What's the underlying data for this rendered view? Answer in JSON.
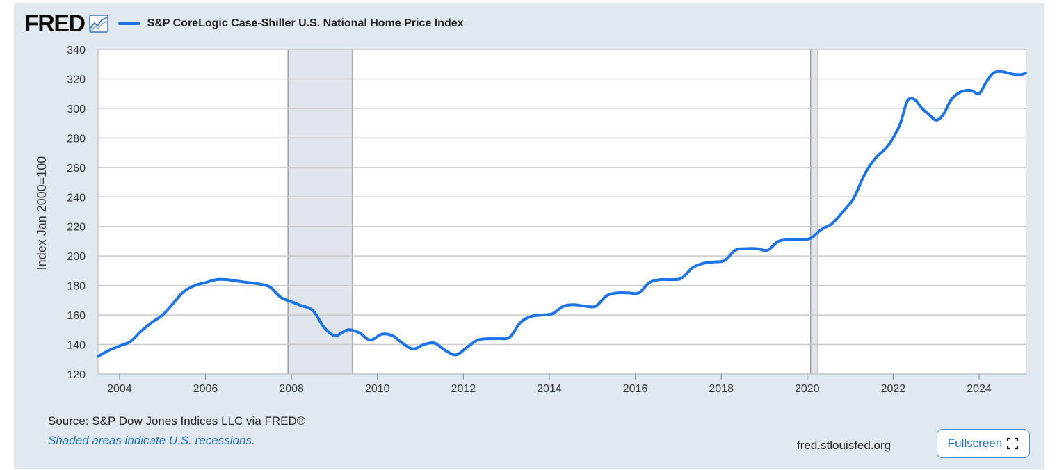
{
  "header": {
    "logo_text": "FRED",
    "logo_icon": "line-chart-icon",
    "series_label": "S&P CoreLogic Case-Shiller U.S. National Home Price Index"
  },
  "footer": {
    "source": "Source: S&P Dow Jones Indices LLC via FRED®",
    "recession_note": "Shaded areas indicate U.S. recessions.",
    "url": "fred.stlouisfed.org",
    "fullscreen_label": "Fullscreen",
    "fullscreen_icon": "expand-icon"
  },
  "colors": {
    "series": "#1a73e8",
    "panel": "#e1e9f0",
    "recession": "#e0e5ec"
  },
  "chart_data": {
    "type": "line",
    "ylabel": "Index Jan 2000=100",
    "xlim": [
      2003.5,
      2025.1
    ],
    "ylim": [
      120,
      340
    ],
    "y_ticks": [
      120,
      140,
      160,
      180,
      200,
      220,
      240,
      260,
      280,
      300,
      320,
      340
    ],
    "x_ticks": [
      2004,
      2006,
      2008,
      2010,
      2012,
      2014,
      2016,
      2018,
      2020,
      2022,
      2024
    ],
    "x_tick_labels": [
      "2004",
      "2006",
      "2008",
      "2010",
      "2012",
      "2014",
      "2016",
      "2018",
      "2020",
      "2022",
      "2024"
    ],
    "recessions": [
      [
        2007.92,
        2009.42
      ],
      [
        2020.08,
        2020.25
      ]
    ],
    "grid": true,
    "series": [
      {
        "x": [
          2003.5,
          2003.75,
          2004.0,
          2004.25,
          2004.5,
          2004.75,
          2005.0,
          2005.25,
          2005.5,
          2005.75,
          2006.0,
          2006.25,
          2006.5,
          2006.75,
          2007.0,
          2007.25,
          2007.5,
          2007.75,
          2008.0,
          2008.17,
          2008.5,
          2008.75,
          2009.0,
          2009.17,
          2009.33,
          2009.58,
          2009.83,
          2010.1,
          2010.35,
          2010.58,
          2010.83,
          2011.08,
          2011.33,
          2011.58,
          2011.83,
          2012.08,
          2012.33,
          2012.58,
          2012.83,
          2013.08,
          2013.33,
          2013.58,
          2013.83,
          2014.08,
          2014.33,
          2014.58,
          2014.83,
          2015.08,
          2015.33,
          2015.58,
          2015.83,
          2016.08,
          2016.33,
          2016.58,
          2016.83,
          2017.08,
          2017.33,
          2017.58,
          2017.83,
          2018.08,
          2018.33,
          2018.58,
          2018.83,
          2019.08,
          2019.33,
          2019.58,
          2019.83,
          2020.08,
          2020.33,
          2020.58,
          2020.83,
          2021.08,
          2021.33,
          2021.58,
          2021.83,
          2022.0,
          2022.17,
          2022.33,
          2022.5,
          2022.67,
          2022.83,
          2023.0,
          2023.17,
          2023.33,
          2023.5,
          2023.67,
          2023.83,
          2024.0,
          2024.17,
          2024.33,
          2024.5,
          2024.67,
          2024.83,
          2025.0,
          2025.08
        ],
        "y": [
          132,
          136,
          139,
          142,
          149,
          155,
          160,
          168,
          176,
          180,
          182,
          184,
          184,
          183,
          182,
          181,
          179,
          172,
          169,
          167,
          163,
          152,
          146,
          148,
          150,
          148,
          143,
          147,
          146,
          141,
          137,
          140,
          141,
          136,
          133,
          138,
          143,
          144,
          144,
          145,
          155,
          159,
          160,
          161,
          166,
          167,
          166,
          166,
          173,
          175,
          175,
          175,
          182,
          184,
          184,
          185,
          192,
          195,
          196,
          197,
          204,
          205,
          205,
          204,
          210,
          211,
          211,
          212,
          218,
          222,
          230,
          239,
          255,
          266,
          273,
          280,
          290,
          305,
          306,
          300,
          296,
          292,
          296,
          305,
          310,
          312,
          312,
          310,
          318,
          324,
          325,
          324,
          323,
          323,
          324
        ]
      }
    ]
  }
}
